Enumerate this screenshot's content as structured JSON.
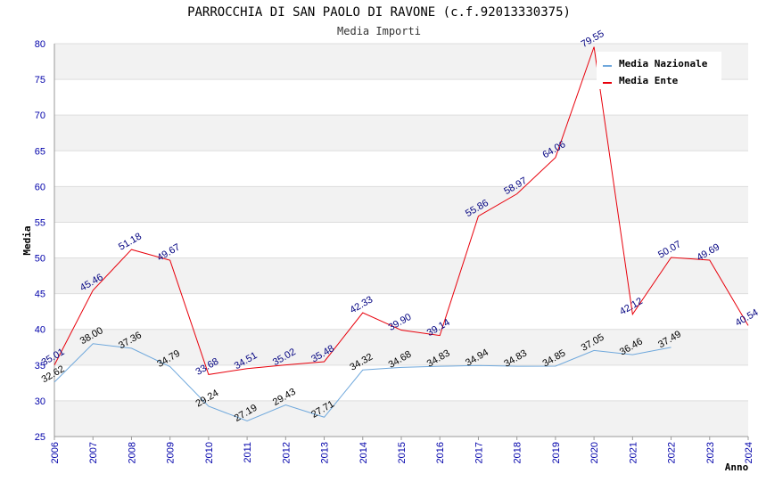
{
  "chart_data": {
    "type": "line",
    "title": "PARROCCHIA DI SAN PAOLO DI RAVONE (c.f.92013330375)",
    "subtitle": "Media Importi",
    "ylabel": "Media",
    "xlabel": "Anno",
    "ylim": [
      25,
      80
    ],
    "yticks": [
      "25",
      "30",
      "35",
      "40",
      "45",
      "50",
      "55",
      "60",
      "65",
      "70",
      "75",
      "80"
    ],
    "x": [
      "2006",
      "2007",
      "2008",
      "2009",
      "2010",
      "2011",
      "2012",
      "2013",
      "2014",
      "2015",
      "2016",
      "2017",
      "2018",
      "2019",
      "2020",
      "2021",
      "2022",
      "2023",
      "2024"
    ],
    "grid": true,
    "legend_position": "top-right",
    "series": [
      {
        "name": "Media Nazionale",
        "color": "#6fa8dc",
        "values": [
          32.62,
          38.0,
          37.36,
          34.79,
          29.24,
          27.19,
          29.43,
          27.71,
          34.32,
          34.68,
          34.83,
          34.94,
          34.83,
          34.85,
          37.05,
          36.46,
          37.49,
          null,
          null
        ],
        "labels": [
          "32.62",
          "38.00",
          "37.36",
          "34.79",
          "29.24",
          "27.19",
          "29.43",
          "27.71",
          "34.32",
          "34.68",
          "34.83",
          "34.94",
          "34.83",
          "34.85",
          "37.05",
          "36.46",
          "37.49",
          null,
          null
        ]
      },
      {
        "name": "Media Ente",
        "color": "#e8000b",
        "values": [
          35.01,
          45.46,
          51.18,
          49.67,
          33.68,
          34.51,
          35.02,
          35.48,
          42.33,
          39.9,
          39.14,
          55.86,
          58.97,
          64.06,
          79.55,
          42.12,
          50.07,
          49.69,
          40.54
        ],
        "labels": [
          "35.01",
          "45.46",
          "51.18",
          "49.67",
          "33.68",
          "34.51",
          "35.02",
          "35.48",
          "42.33",
          "39.90",
          "39.14",
          "55.86",
          "58.97",
          "64.06",
          "79.55",
          "42.12",
          "50.07",
          "49.69",
          "40.54"
        ]
      }
    ]
  }
}
